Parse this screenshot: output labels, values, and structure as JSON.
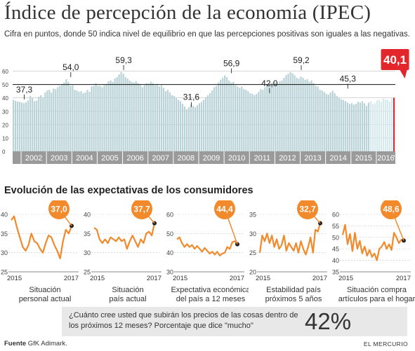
{
  "title": "Índice de percepción de la economía (IPEC)",
  "subtitle": "Cifra en puntos, donde 50 indica nivel de equilibrio en que las percepciones positivas son iguales a las negativas.",
  "colors": {
    "bar": "#b9d2d6",
    "bar_highlight": "#d6e9ec",
    "bar_latest": "#e3262c",
    "year_band": "#9a9a9a",
    "line": "#f28a2c",
    "badge": "#f28a2c",
    "background_box": "#e8e8e8"
  },
  "chart_data": [
    {
      "type": "bar",
      "title": "Índice de percepción de la economía (IPEC)",
      "ylim": [
        0,
        65
      ],
      "yticks": [
        0,
        10,
        20,
        30,
        40,
        50,
        60
      ],
      "grid": true,
      "x_start": "2001-09",
      "x_labels": [
        "2002",
        "2003",
        "2004",
        "2005",
        "2006",
        "2007",
        "2008",
        "2009",
        "2010",
        "2011",
        "2012",
        "2013",
        "2014",
        "2015",
        "2016",
        "'17"
      ],
      "annotations": [
        {
          "x": "2002-02",
          "value": 37.3,
          "label": "37,3"
        },
        {
          "x": "2003-12",
          "value": 54.0,
          "label": "54,0"
        },
        {
          "x": "2006-01",
          "value": 59.3,
          "label": "59,3"
        },
        {
          "x": "2008-09",
          "value": 31.6,
          "label": "31,6"
        },
        {
          "x": "2010-04",
          "value": 56.9,
          "label": "56,9"
        },
        {
          "x": "2011-10",
          "value": 42.0,
          "label": "42,0"
        },
        {
          "x": "2013-01",
          "value": 59.2,
          "label": "59,2"
        },
        {
          "x": "2014-11",
          "value": 45.3,
          "label": "45,3"
        },
        {
          "x": "2017-02",
          "value": 40.1,
          "label": "40,1"
        }
      ],
      "values": [
        38.5,
        37.8,
        37.3,
        37.0,
        36.5,
        36.0,
        36.8,
        38.0,
        41.5,
        40.0,
        37.5,
        38.0,
        40.8,
        42.0,
        40.5,
        44.0,
        45.5,
        46.0,
        44.0,
        47.0,
        46.5,
        48.0,
        49.0,
        50.0,
        51.5,
        54.0,
        52.0,
        49.0,
        49.5,
        46.0,
        45.5,
        44.5,
        45.0,
        43.5,
        44.0,
        46.0,
        44.5,
        48.5,
        49.0,
        51.0,
        49.0,
        49.0,
        48.0,
        49.5,
        50.5,
        52.5,
        53.0,
        52.0,
        54.5,
        55.5,
        57.5,
        59.3,
        58.0,
        55.5,
        54.5,
        53.0,
        52.0,
        51.5,
        52.5,
        51.0,
        50.0,
        48.0,
        49.5,
        51.0,
        50.5,
        52.0,
        51.0,
        49.5,
        50.5,
        48.5,
        49.5,
        47.5,
        45.0,
        46.0,
        44.0,
        42.0,
        41.5,
        40.0,
        38.5,
        37.5,
        35.5,
        33.5,
        31.6,
        33.0,
        35.0,
        34.0,
        33.0,
        34.5,
        36.0,
        37.0,
        38.5,
        40.5,
        42.0,
        43.5,
        45.5,
        48.0,
        49.0,
        51.5,
        53.5,
        55.0,
        56.9,
        55.5,
        53.0,
        51.5,
        52.0,
        49.5,
        48.5,
        47.5,
        48.5,
        46.5,
        46.0,
        45.0,
        43.5,
        43.0,
        42.0,
        43.0,
        44.5,
        46.5,
        46.0,
        48.0,
        49.0,
        49.5,
        51.0,
        52.0,
        51.5,
        50.5,
        52.5,
        53.0,
        55.0,
        57.0,
        58.0,
        59.2,
        58.5,
        57.0,
        55.0,
        54.5,
        56.0,
        55.0,
        53.5,
        54.0,
        52.0,
        53.0,
        51.0,
        49.0,
        48.5,
        46.0,
        45.5,
        44.5,
        43.0,
        42.5,
        44.0,
        45.3,
        43.5,
        41.5,
        40.0,
        39.0,
        38.5,
        37.5,
        36.5,
        35.5,
        36.0,
        35.0,
        35.5,
        37.0,
        36.5,
        37.5,
        36.0,
        34.0,
        36.5,
        37.5,
        35.5,
        36.0,
        38.0,
        38.5,
        37.0,
        39.5,
        39.0,
        38.5,
        37.0,
        40.0,
        40.1
      ]
    },
    {
      "type": "line",
      "title": "Situación personal actual",
      "x_labels": [
        "2015",
        "2017"
      ],
      "ylim": [
        25,
        40
      ],
      "yticks": [
        25,
        30,
        35,
        40
      ],
      "latest_label": "37,0",
      "values": [
        38.5,
        39.5,
        36.5,
        34.0,
        31.5,
        30.5,
        32.0,
        35.0,
        33.0,
        32.5,
        31.0,
        30.0,
        32.5,
        34.5,
        34.0,
        32.0,
        30.5,
        28.5,
        33.0,
        36.0,
        35.0,
        37.0
      ]
    },
    {
      "type": "line",
      "title": "Situación país actual",
      "x_labels": [
        "2015",
        "2017"
      ],
      "ylim": [
        25,
        40
      ],
      "yticks": [
        25,
        30,
        35,
        40
      ],
      "latest_label": "37,7",
      "values": [
        36.5,
        36.0,
        33.5,
        32.5,
        33.5,
        32.5,
        34.0,
        33.5,
        33.0,
        34.0,
        33.0,
        33.5,
        31.0,
        33.0,
        34.5,
        33.0,
        31.5,
        33.5,
        32.5,
        35.0,
        35.5,
        34.5,
        37.7
      ]
    },
    {
      "type": "line",
      "title": "Expectativa económica del país a 12 meses",
      "x_labels": [
        "2015",
        "2017"
      ],
      "ylim": [
        30,
        60
      ],
      "yticks": [
        30,
        40,
        50,
        60
      ],
      "latest_label": "44,4",
      "values": [
        47.0,
        48.0,
        45.0,
        43.0,
        44.5,
        43.0,
        44.0,
        42.0,
        43.5,
        42.0,
        40.5,
        42.5,
        41.0,
        39.5,
        40.5,
        39.0,
        40.5,
        38.5,
        39.5,
        40.0,
        43.0,
        42.0,
        45.5,
        46.0,
        44.4
      ]
    },
    {
      "type": "line",
      "title": "Estabilidad país próximos 5 años",
      "x_labels": [
        "2015",
        "2017"
      ],
      "ylim": [
        20,
        35
      ],
      "yticks": [
        20,
        25,
        30,
        35
      ],
      "latest_label": "32,7",
      "values": [
        25.0,
        29.5,
        28.0,
        30.0,
        27.5,
        29.5,
        26.5,
        28.5,
        26.0,
        27.0,
        29.5,
        25.5,
        27.5,
        26.5,
        25.5,
        27.5,
        25.0,
        28.0,
        26.0,
        24.5,
        26.5,
        29.0,
        25.0,
        31.0,
        30.5,
        32.7
      ]
    },
    {
      "type": "line",
      "title": "Situación compra artículos para el hogar",
      "x_labels": [
        "2015",
        "2017"
      ],
      "ylim": [
        35,
        60
      ],
      "yticks": [
        35,
        40,
        45,
        50,
        55,
        60
      ],
      "latest_label": "48,6",
      "values": [
        51.0,
        55.5,
        47.0,
        51.5,
        44.0,
        52.0,
        45.0,
        48.5,
        43.0,
        46.0,
        42.0,
        44.5,
        41.5,
        43.0,
        40.0,
        45.0,
        46.0,
        48.0,
        45.0,
        47.0,
        44.5,
        52.0,
        50.0,
        47.5,
        49.0,
        48.6
      ]
    }
  ],
  "band_title": "Evolución de las expectativas de los consumidores",
  "question": {
    "text": "¿Cuánto cree usted que subirán los precios de las cosas dentro de los próximos 12 meses? Porcentaje que dice \"mucho\"",
    "value": "42%"
  },
  "footer": {
    "source_label": "Fuente",
    "source_text": "GfK Adimark.",
    "brand": "EL MERCURIO"
  }
}
